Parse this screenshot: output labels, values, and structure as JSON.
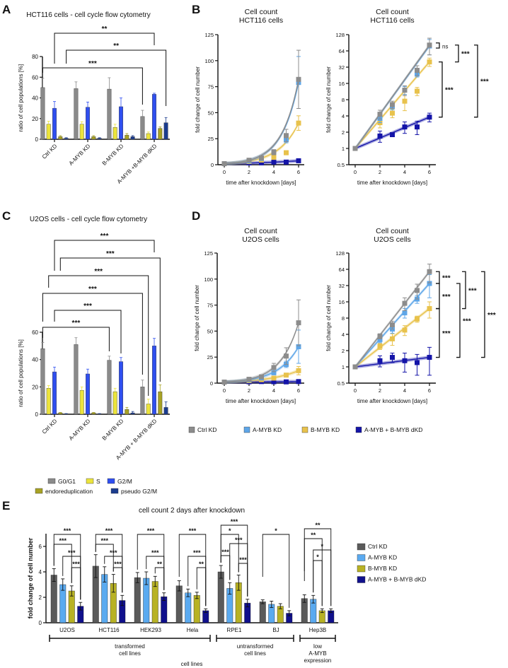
{
  "panels": [
    "A",
    "B",
    "C",
    "D",
    "E"
  ],
  "chart_data": [
    {
      "type": "bar",
      "title": "HCT116 cells - cell cycle flow cytometry",
      "ylabel": "ratio of cell populations [%]",
      "ylim": [
        0,
        80
      ],
      "yticks": [
        "0",
        "20",
        "40",
        "60",
        "80"
      ],
      "categories": [
        "Ctrl KD",
        "A-MYB KD",
        "B-MYB KD",
        "A-MYB +B-MYB dKD"
      ],
      "series": [
        {
          "name": "G0/G1",
          "color": "#8a8a8a",
          "values": [
            50,
            49,
            48.5,
            22
          ],
          "errors": [
            9,
            6.5,
            11,
            6
          ]
        },
        {
          "name": "S",
          "color": "#ece43c",
          "values": [
            14.5,
            14.5,
            11.5,
            5.5
          ],
          "errors": [
            3,
            2.5,
            3,
            1.5
          ]
        },
        {
          "name": "G2/M",
          "color": "#2f4ff0",
          "values": [
            30,
            31,
            31.5,
            43.5
          ],
          "errors": [
            6.5,
            5,
            8.5,
            1
          ]
        },
        {
          "name": "endoreduplication",
          "color": "#a8a224",
          "values": [
            2.5,
            2.5,
            4,
            10.5
          ],
          "errors": [
            1,
            1,
            1.5,
            1.5
          ]
        },
        {
          "name": "pseudo G2/M",
          "color": "#1b3c8e",
          "values": [
            1,
            1,
            2.5,
            16
          ],
          "errors": [
            0.5,
            0.5,
            1,
            5
          ]
        }
      ],
      "brackets": [
        {
          "from": [
            0,
            2
          ],
          "to": [
            3,
            2
          ],
          "label": "**"
        },
        {
          "from": [
            0,
            4
          ],
          "to": [
            3,
            4
          ],
          "label": "**"
        },
        {
          "from": [
            0,
            0
          ],
          "to": [
            3,
            0
          ],
          "label": "***"
        }
      ]
    },
    {
      "type": "line",
      "title_lines": [
        "Cell count",
        "HCT116 cells"
      ],
      "xlabel": "time after knockdown [days]",
      "ylabel": "fold change of cell number",
      "yscale": "linear",
      "ylim": [
        0,
        125
      ],
      "yticks": [
        "0",
        "25",
        "50",
        "75",
        "100",
        "125"
      ],
      "xticks": [
        "0",
        "2",
        "4",
        "6"
      ],
      "x": [
        0,
        2,
        3,
        4,
        5,
        6
      ],
      "series": [
        {
          "name": "Ctrl KD",
          "color": "#8c8c8c",
          "values": [
            1,
            4.3,
            6.5,
            12,
            28,
            82
          ],
          "errors": [
            0,
            0.8,
            1,
            2.5,
            6,
            28
          ]
        },
        {
          "name": "A-MYB KD",
          "color": "#5ea6e8",
          "values": [
            1,
            3.6,
            6,
            12,
            24,
            79
          ],
          "errors": [
            0,
            0.6,
            0.8,
            2,
            3,
            25
          ]
        },
        {
          "name": "B-MYB KD",
          "color": "#e8c24c",
          "values": [
            1,
            3,
            4.5,
            7.5,
            11.5,
            40
          ],
          "errors": [
            0,
            0.6,
            0.8,
            2.5,
            2,
            7
          ]
        },
        {
          "name": "A-MYB + B-MYB dKD",
          "color": "#1414a8",
          "values": [
            1,
            1.7,
            1.8,
            2.5,
            2.5,
            3.8
          ],
          "errors": [
            0,
            0.4,
            0.1,
            0.6,
            0.7,
            0.7
          ]
        }
      ]
    },
    {
      "type": "line",
      "title_lines": [
        "Cell count",
        "HCT116 cells"
      ],
      "xlabel": "time after knockdown [days]",
      "ylabel": "fold change of cell number",
      "yscale": "log2",
      "ylim": [
        0.5,
        128
      ],
      "yticks": [
        "0.5",
        "1",
        "2",
        "4",
        "8",
        "16",
        "32",
        "64",
        "128"
      ],
      "xticks": [
        "0",
        "2",
        "4",
        "6"
      ],
      "x": [
        0,
        2,
        3,
        4,
        5,
        6
      ],
      "series": [
        {
          "name": "Ctrl KD",
          "color": "#8c8c8c",
          "values": [
            1,
            4.3,
            6.5,
            12,
            28,
            82
          ],
          "errors": [
            0,
            0.8,
            1,
            2.5,
            6,
            28
          ]
        },
        {
          "name": "A-MYB KD",
          "color": "#5ea6e8",
          "values": [
            1,
            3.6,
            6,
            12,
            24,
            79
          ],
          "errors": [
            0,
            0.6,
            0.8,
            2,
            3,
            25
          ]
        },
        {
          "name": "B-MYB KD",
          "color": "#e8c24c",
          "values": [
            1,
            3,
            4.5,
            7.5,
            11.5,
            40
          ],
          "errors": [
            0,
            0.6,
            0.8,
            2.5,
            2,
            7
          ]
        },
        {
          "name": "A-MYB + B-MYB dKD",
          "color": "#1414a8",
          "values": [
            1,
            1.7,
            1.8,
            2.5,
            2.5,
            3.8
          ],
          "errors": [
            0,
            0.4,
            0.1,
            0.6,
            0.7,
            0.7
          ]
        }
      ],
      "brackets": [
        {
          "from": 0,
          "to": 1,
          "label": "ns"
        },
        {
          "from": 0,
          "to": 2,
          "label": "***"
        },
        {
          "from": 2,
          "to": 3,
          "label": "***"
        },
        {
          "from": 0,
          "to": 3,
          "label": "***"
        }
      ]
    },
    {
      "type": "bar",
      "title": "U2OS cells - cell cycle flow cytometry",
      "ylabel": "ratio of cell populations [%]",
      "ylim": [
        0,
        60
      ],
      "yticks": [
        "0",
        "20",
        "40",
        "60"
      ],
      "categories": [
        "Ctrl KD",
        "A-MYB KD",
        "B-MYB KD",
        "A-MYB + B-MYB dKD"
      ],
      "series": [
        {
          "name": "G0/G1",
          "color": "#8a8a8a",
          "values": [
            48,
            51,
            39.5,
            20
          ],
          "errors": [
            4.5,
            5,
            3,
            5
          ]
        },
        {
          "name": "S",
          "color": "#ece43c",
          "values": [
            19,
            17.5,
            16.5,
            7.5
          ],
          "errors": [
            2,
            2.5,
            2.5,
            3.5
          ]
        },
        {
          "name": "G2/M",
          "color": "#2f4ff0",
          "values": [
            31,
            29.5,
            38.5,
            50
          ],
          "errors": [
            3.5,
            3.5,
            3,
            5.5
          ]
        },
        {
          "name": "endoreduplication",
          "color": "#a8a224",
          "values": [
            1,
            1,
            3.5,
            16.5
          ],
          "errors": [
            0.3,
            0.3,
            1.5,
            5
          ]
        },
        {
          "name": "pseudo G2/M",
          "color": "#1b3c8e",
          "values": [
            0.3,
            0.3,
            1,
            5
          ],
          "errors": [
            0.2,
            0.2,
            1,
            4
          ]
        }
      ],
      "brackets": [
        {
          "from": [
            0,
            2
          ],
          "to": [
            3,
            2
          ],
          "label": "***"
        },
        {
          "from": [
            0,
            3
          ],
          "to": [
            3,
            3
          ],
          "label": "***"
        },
        {
          "from": [
            0,
            1
          ],
          "to": [
            3,
            1
          ],
          "label": "***"
        },
        {
          "from": [
            0,
            0
          ],
          "to": [
            3,
            0
          ],
          "label": "***"
        },
        {
          "from": [
            0,
            2
          ],
          "to": [
            2,
            2
          ],
          "label": "***"
        },
        {
          "from": [
            0,
            0
          ],
          "to": [
            2,
            0
          ],
          "label": "***"
        }
      ]
    },
    {
      "type": "line",
      "title_lines": [
        "Cell count",
        "U2OS cells"
      ],
      "xlabel": "time after knockdown [days]",
      "ylabel": "fold change of cell number",
      "yscale": "linear",
      "ylim": [
        0,
        125
      ],
      "yticks": [
        "0",
        "25",
        "50",
        "75",
        "100",
        "125"
      ],
      "xticks": [
        "0",
        "2",
        "4",
        "6"
      ],
      "x": [
        0,
        2,
        3,
        4,
        5,
        6
      ],
      "series": [
        {
          "name": "Ctrl KD",
          "color": "#8c8c8c",
          "values": [
            1,
            3.7,
            6,
            15,
            26,
            58
          ],
          "errors": [
            0,
            0.4,
            1,
            4,
            8,
            22
          ]
        },
        {
          "name": "A-MYB KD",
          "color": "#5ea6e8",
          "values": [
            1,
            3.2,
            5,
            10,
            18,
            35
          ],
          "errors": [
            0,
            0.4,
            0.8,
            2,
            3,
            16
          ]
        },
        {
          "name": "B-MYB KD",
          "color": "#e8c24c",
          "values": [
            1,
            2.4,
            3.3,
            4.8,
            7.7,
            12
          ],
          "errors": [
            0,
            0.3,
            0.8,
            1,
            1,
            4
          ]
        },
        {
          "name": "A-MYB + B-MYB dKD",
          "color": "#1414a8",
          "values": [
            1,
            1.3,
            1.5,
            1.3,
            1.2,
            1.5
          ],
          "errors": [
            0,
            0.3,
            0.3,
            0.5,
            0.5,
            0.8
          ]
        }
      ]
    },
    {
      "type": "line",
      "title_lines": [
        "Cell count",
        "U2OS cells"
      ],
      "xlabel": "time after knockdown [days]",
      "ylabel": "fold change of cell number",
      "yscale": "log2",
      "ylim": [
        0.5,
        128
      ],
      "yticks": [
        "0.5",
        "1",
        "2",
        "4",
        "8",
        "16",
        "32",
        "64",
        "128"
      ],
      "xticks": [
        "0",
        "2",
        "4",
        "6"
      ],
      "x": [
        0,
        2,
        3,
        4,
        5,
        6
      ],
      "series": [
        {
          "name": "Ctrl KD",
          "color": "#8c8c8c",
          "values": [
            1,
            3.7,
            6,
            15,
            26,
            58
          ],
          "errors": [
            0,
            0.4,
            1,
            4,
            8,
            22
          ]
        },
        {
          "name": "A-MYB KD",
          "color": "#5ea6e8",
          "values": [
            1,
            3.2,
            5,
            10,
            18,
            35
          ],
          "errors": [
            0,
            0.4,
            0.8,
            2,
            3,
            16
          ]
        },
        {
          "name": "B-MYB KD",
          "color": "#e8c24c",
          "values": [
            1,
            2.4,
            3.3,
            4.8,
            7.7,
            12
          ],
          "errors": [
            0,
            0.3,
            0.8,
            1,
            1,
            4
          ]
        },
        {
          "name": "A-MYB + B-MYB dKD",
          "color": "#1414a8",
          "values": [
            1,
            1.3,
            1.5,
            1.3,
            1.2,
            1.5
          ],
          "errors": [
            0,
            0.3,
            0.3,
            0.5,
            0.5,
            0.8
          ]
        }
      ],
      "brackets": [
        {
          "from": 0,
          "to": 1,
          "label": "***"
        },
        {
          "from": 1,
          "to": 2,
          "label": "***"
        },
        {
          "from": 2,
          "to": 3,
          "label": "***"
        },
        {
          "from": 0,
          "to": 2,
          "label": "***"
        },
        {
          "from": 1,
          "to": 3,
          "label": "***"
        },
        {
          "from": 0,
          "to": 3,
          "label": "***"
        }
      ]
    },
    {
      "type": "bar",
      "title": "cell count 2 days after knockdown",
      "ylabel": "fold change of cell number",
      "xlabel": "cell lines",
      "ylim": [
        0,
        7
      ],
      "yticks": [
        "0",
        "2",
        "4",
        "6"
      ],
      "categories": [
        "U2OS",
        "HCT116",
        "HEK293",
        "Hela",
        "RPE1",
        "BJ",
        "Hep3B"
      ],
      "category_groups": [
        {
          "label_lines": [
            "transformed",
            "cell lines"
          ],
          "from": 0,
          "to": 3
        },
        {
          "label_lines": [
            "untransformed",
            "cell lines"
          ],
          "from": 4,
          "to": 5
        },
        {
          "label_lines": [
            "low",
            "A-MYB",
            "expression"
          ],
          "from": 6,
          "to": 6
        }
      ],
      "series": [
        {
          "name": "Ctrl KD",
          "color": "#5a5a5a",
          "values": [
            3.75,
            4.45,
            3.55,
            2.9,
            4.0,
            1.65,
            1.9
          ],
          "errors": [
            0.5,
            0.9,
            0.4,
            0.4,
            0.5,
            0.15,
            0.3
          ]
        },
        {
          "name": "A-MYB KD",
          "color": "#5aaaf0",
          "values": [
            3.0,
            3.8,
            3.5,
            2.35,
            2.7,
            1.45,
            1.85
          ],
          "errors": [
            0.45,
            0.6,
            0.5,
            0.3,
            0.45,
            0.25,
            0.3
          ]
        },
        {
          "name": "B-MYB KD",
          "color": "#b8b224",
          "values": [
            2.5,
            3.1,
            3.25,
            2.15,
            3.15,
            1.3,
            0.95
          ],
          "errors": [
            0.4,
            0.7,
            0.4,
            0.25,
            0.6,
            0.2,
            0.15
          ]
        },
        {
          "name": "A-MYB + B-MYB dKD",
          "color": "#10108c",
          "values": [
            1.3,
            1.75,
            2.05,
            0.95,
            1.55,
            0.75,
            0.95
          ],
          "errors": [
            0.3,
            0.4,
            0.3,
            0.15,
            0.3,
            0.2,
            0.15
          ]
        }
      ],
      "brackets": [
        {
          "group": 0,
          "from": 0,
          "to": 3,
          "label": "***"
        },
        {
          "group": 0,
          "from": 0,
          "to": 2,
          "label": "***"
        },
        {
          "group": 0,
          "from": 1,
          "to": 3,
          "label": "***"
        },
        {
          "group": 0,
          "from": 2,
          "to": 3,
          "label": "***"
        },
        {
          "group": 1,
          "from": 0,
          "to": 3,
          "label": "***"
        },
        {
          "group": 1,
          "from": 0,
          "to": 2,
          "label": "***"
        },
        {
          "group": 1,
          "from": 1,
          "to": 3,
          "label": "***"
        },
        {
          "group": 1,
          "from": 2,
          "to": 3,
          "label": "***"
        },
        {
          "group": 2,
          "from": 0,
          "to": 3,
          "label": "***"
        },
        {
          "group": 2,
          "from": 1,
          "to": 3,
          "label": "***"
        },
        {
          "group": 2,
          "from": 2,
          "to": 3,
          "label": "**"
        },
        {
          "group": 3,
          "from": 0,
          "to": 3,
          "label": "***"
        },
        {
          "group": 3,
          "from": 1,
          "to": 3,
          "label": "***"
        },
        {
          "group": 3,
          "from": 2,
          "to": 3,
          "label": "**"
        },
        {
          "group": 4,
          "from": 0,
          "to": 3,
          "label": "***"
        },
        {
          "group": 4,
          "from": 0,
          "to": 2,
          "label": "*"
        },
        {
          "group": 4,
          "from": 1,
          "to": 3,
          "label": "***"
        },
        {
          "group": 4,
          "from": 0,
          "to": 1,
          "label": "***"
        },
        {
          "group": 4,
          "from": 2,
          "to": 3,
          "label": "***"
        },
        {
          "group": 5,
          "from": 0,
          "to": 3,
          "label": "*"
        },
        {
          "group": 6,
          "from": 0,
          "to": 3,
          "label": "**"
        },
        {
          "group": 6,
          "from": 0,
          "to": 2,
          "label": "**"
        },
        {
          "group": 6,
          "from": 1,
          "to": 3,
          "label": "*"
        },
        {
          "group": 6,
          "from": 1,
          "to": 2,
          "label": "*"
        }
      ]
    }
  ]
}
